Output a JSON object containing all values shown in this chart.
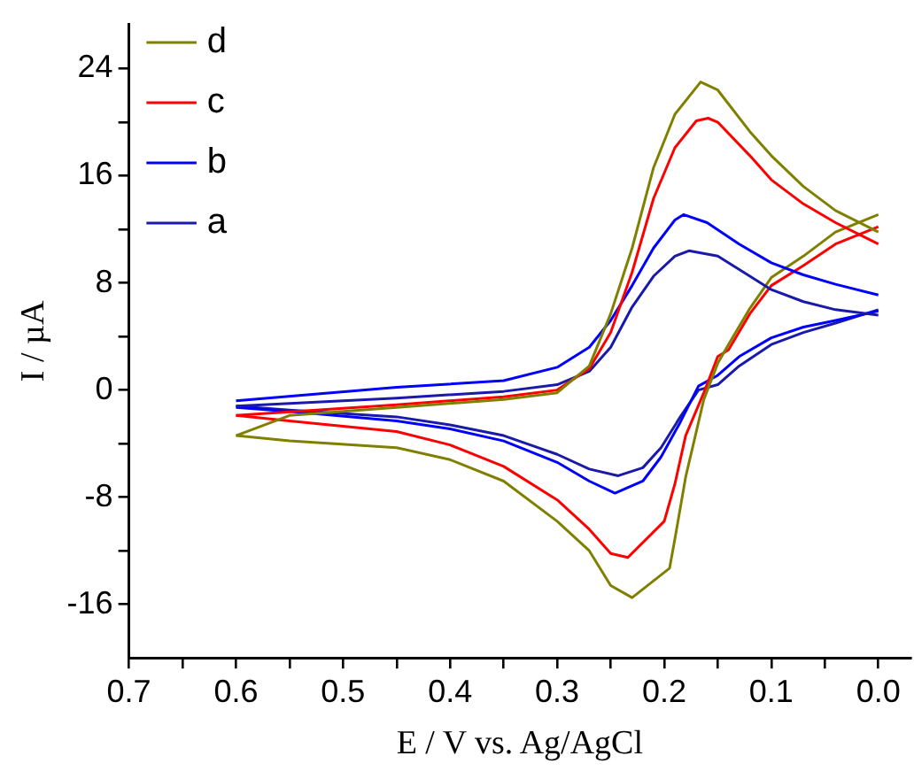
{
  "chart_data": {
    "type": "line",
    "xlabel": "E / V vs. Ag/AgCl",
    "ylabel": "I / µA",
    "xlim": [
      0.7,
      -0.03
    ],
    "ylim": [
      -20,
      27.3
    ],
    "xticks": [
      0.7,
      {
        "value": 0.65,
        "label": null
      },
      0.6,
      {
        "value": 0.55,
        "label": null
      },
      0.5,
      {
        "value": 0.45,
        "label": null
      },
      0.4,
      {
        "value": 0.35,
        "label": null
      },
      0.3,
      {
        "value": 0.25,
        "label": null
      },
      0.2,
      {
        "value": 0.15,
        "label": null
      },
      0.1,
      {
        "value": 0.05,
        "label": null
      },
      {
        "value": 0,
        "label": "0.0"
      }
    ],
    "yticks": [
      -16,
      {
        "value": -12,
        "label": null
      },
      -8,
      {
        "value": -4,
        "label": null
      },
      0,
      {
        "value": 4,
        "label": null
      },
      8,
      {
        "value": 12,
        "label": null
      },
      16,
      {
        "value": 20,
        "label": null
      },
      24
    ],
    "legend": "top left",
    "series": [
      {
        "name": "d",
        "color": "#808000",
        "x": [
          0.6,
          0.55,
          0.45,
          0.35,
          0.3,
          0.27,
          0.25,
          0.23,
          0.21,
          0.19,
          0.166,
          0.15,
          0.12,
          0.1,
          0.07,
          0.04,
          0.0
        ],
        "values": [
          -3.4,
          -1.9,
          -1.3,
          -0.7,
          -0.2,
          1.8,
          5.7,
          10.6,
          16.6,
          20.6,
          23.0,
          22.4,
          19.3,
          17.5,
          15.2,
          13.4,
          11.8
        ]
      },
      {
        "name": "c",
        "color": "#ff0000",
        "x": [
          0.6,
          0.45,
          0.35,
          0.3,
          0.27,
          0.25,
          0.23,
          0.21,
          0.19,
          0.17,
          0.159,
          0.15,
          0.12,
          0.1,
          0.07,
          0.04,
          0.0
        ],
        "values": [
          -1.9,
          -1.1,
          -0.5,
          0.0,
          1.6,
          4.3,
          8.8,
          14.3,
          18.1,
          20.1,
          20.3,
          20.0,
          17.5,
          15.7,
          13.9,
          12.5,
          10.9
        ]
      },
      {
        "name": "b",
        "color": "#0000ff",
        "x": [
          0.6,
          0.45,
          0.35,
          0.3,
          0.27,
          0.25,
          0.23,
          0.21,
          0.19,
          0.182,
          0.16,
          0.13,
          0.1,
          0.07,
          0.04,
          0.0
        ],
        "values": [
          -0.8,
          0.2,
          0.7,
          1.7,
          3.2,
          5.2,
          7.8,
          10.6,
          12.7,
          13.1,
          12.5,
          10.9,
          9.5,
          8.6,
          7.9,
          7.1
        ]
      },
      {
        "name": "a",
        "color": "#1a1aaa",
        "x": [
          0.6,
          0.45,
          0.35,
          0.3,
          0.27,
          0.25,
          0.23,
          0.21,
          0.19,
          0.177,
          0.15,
          0.12,
          0.1,
          0.07,
          0.04,
          0.0
        ],
        "values": [
          -1.2,
          -0.6,
          -0.1,
          0.4,
          1.4,
          3.2,
          6.2,
          8.5,
          10.0,
          10.4,
          10.0,
          8.5,
          7.5,
          6.6,
          6.0,
          5.6
        ]
      },
      {
        "color": "#808000",
        "x": [
          0.0,
          0.04,
          0.07,
          0.1,
          0.12,
          0.14,
          0.15,
          0.163,
          0.18,
          0.19,
          0.195,
          0.23,
          0.25,
          0.27,
          0.3,
          0.35,
          0.4,
          0.45,
          0.55,
          0.6
        ],
        "values": [
          13.1,
          11.8,
          10.0,
          8.4,
          6.1,
          3.4,
          2.0,
          -0.7,
          -6.5,
          -11.1,
          -13.3,
          -15.5,
          -14.6,
          -12.0,
          -9.8,
          -6.8,
          -5.2,
          -4.3,
          -3.8,
          -3.4
        ]
      },
      {
        "color": "#ff0000",
        "x": [
          0.0,
          0.04,
          0.07,
          0.1,
          0.12,
          0.14,
          0.15,
          0.163,
          0.18,
          0.19,
          0.2,
          0.234,
          0.25,
          0.27,
          0.3,
          0.35,
          0.4,
          0.45,
          0.55,
          0.6
        ],
        "values": [
          12.2,
          10.9,
          9.3,
          7.8,
          5.7,
          3.0,
          2.5,
          -0.2,
          -3.4,
          -7.0,
          -9.8,
          -12.5,
          -12.2,
          -10.4,
          -8.2,
          -5.7,
          -4.1,
          -3.1,
          -2.3,
          -1.9
        ]
      },
      {
        "color": "#0000ff",
        "x": [
          0.0,
          0.04,
          0.07,
          0.1,
          0.13,
          0.15,
          0.168,
          0.185,
          0.203,
          0.22,
          0.246,
          0.27,
          0.3,
          0.35,
          0.4,
          0.45,
          0.55,
          0.6
        ],
        "values": [
          5.9,
          5.2,
          4.7,
          3.9,
          2.5,
          1.1,
          0.3,
          -2.4,
          -5.0,
          -6.8,
          -7.7,
          -6.8,
          -5.4,
          -3.8,
          -2.9,
          -2.3,
          -1.6,
          -1.3
        ]
      },
      {
        "color": "#1a1aaa",
        "x": [
          0.0,
          0.04,
          0.07,
          0.1,
          0.13,
          0.15,
          0.168,
          0.185,
          0.203,
          0.22,
          0.243,
          0.27,
          0.3,
          0.35,
          0.4,
          0.45,
          0.55,
          0.6
        ],
        "values": [
          6.0,
          5.0,
          4.3,
          3.4,
          1.8,
          0.4,
          0.0,
          -2.0,
          -4.3,
          -5.8,
          -6.4,
          -5.9,
          -4.8,
          -3.4,
          -2.6,
          -2.0,
          -1.5,
          -1.2
        ]
      }
    ]
  }
}
